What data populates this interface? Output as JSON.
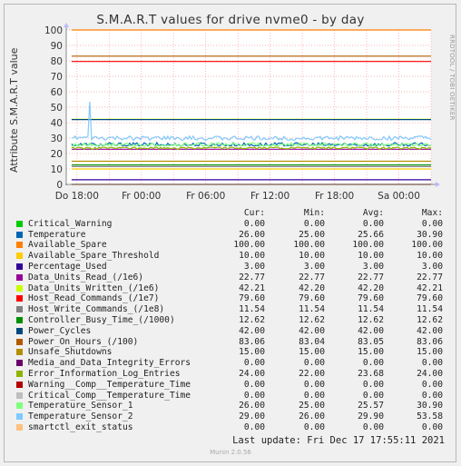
{
  "chart_data": {
    "type": "line",
    "title": "S.M.A.R.T values for drive nvme0 - by day",
    "ylabel": "Attribute S.M.A.R.T value",
    "ylim": [
      0,
      100
    ],
    "yticks": [
      0,
      10,
      20,
      30,
      40,
      50,
      60,
      70,
      80,
      90,
      100
    ],
    "xlim": [
      -1,
      33
    ],
    "xticks": [
      {
        "h": 0,
        "label": "Do 18:00"
      },
      {
        "h": 6,
        "label": "Fr 00:00"
      },
      {
        "h": 12,
        "label": "Fr 06:00"
      },
      {
        "h": 18,
        "label": "Fr 12:00"
      },
      {
        "h": 24,
        "label": "Fr 18:00"
      },
      {
        "h": 30,
        "label": "Sa 00:00"
      }
    ],
    "grid": true,
    "series": [
      {
        "name": "Critical_Warning",
        "color": "#00cc00",
        "cur": "0.00",
        "min": "0.00",
        "avg": "0.00",
        "max": "0.00",
        "y": 0
      },
      {
        "name": "Temperature",
        "color": "#0066b3",
        "cur": "26.00",
        "min": "25.00",
        "avg": "25.66",
        "max": "30.90",
        "y": 25.7
      },
      {
        "name": "Available_Spare",
        "color": "#ff8000",
        "cur": "100.00",
        "min": "100.00",
        "avg": "100.00",
        "max": "100.00",
        "y": 100
      },
      {
        "name": "Available_Spare_Threshold",
        "color": "#ffcc00",
        "cur": "10.00",
        "min": "10.00",
        "avg": "10.00",
        "max": "10.00",
        "y": 10
      },
      {
        "name": "Percentage_Used",
        "color": "#330099",
        "cur": "3.00",
        "min": "3.00",
        "avg": "3.00",
        "max": "3.00",
        "y": 3
      },
      {
        "name": "Data_Units_Read_(/1e6)",
        "color": "#990099",
        "cur": "22.77",
        "min": "22.77",
        "avg": "22.77",
        "max": "22.77",
        "y": 22.77
      },
      {
        "name": "Data_Units_Written_(/1e6)",
        "color": "#ccff00",
        "cur": "42.21",
        "min": "42.20",
        "avg": "42.20",
        "max": "42.21",
        "y": 42.2
      },
      {
        "name": "Host_Read_Commands_(/1e7)",
        "color": "#ff0000",
        "cur": "79.60",
        "min": "79.60",
        "avg": "79.60",
        "max": "79.60",
        "y": 79.6
      },
      {
        "name": "Host_Write_Commands_(/1e8)",
        "color": "#808080",
        "cur": "11.54",
        "min": "11.54",
        "avg": "11.54",
        "max": "11.54",
        "y": 11.54
      },
      {
        "name": "Controller_Busy_Time_(/1000)",
        "color": "#008f00",
        "cur": "12.62",
        "min": "12.62",
        "avg": "12.62",
        "max": "12.62",
        "y": 12.62
      },
      {
        "name": "Power_Cycles",
        "color": "#00487d",
        "cur": "42.00",
        "min": "42.00",
        "avg": "42.00",
        "max": "42.00",
        "y": 42
      },
      {
        "name": "Power_On_Hours_(/100)",
        "color": "#b35a00",
        "cur": "83.06",
        "min": "83.04",
        "avg": "83.05",
        "max": "83.06",
        "y": 83.05
      },
      {
        "name": "Unsafe_Shutdowns",
        "color": "#b38f00",
        "cur": "15.00",
        "min": "15.00",
        "avg": "15.00",
        "max": "15.00",
        "y": 15
      },
      {
        "name": "Media_and_Data_Integrity_Errors",
        "color": "#6b006b",
        "cur": "0.00",
        "min": "0.00",
        "avg": "0.00",
        "max": "0.00",
        "y": 0
      },
      {
        "name": "Error_Information_Log_Entries",
        "color": "#8fb300",
        "cur": "24.00",
        "min": "22.00",
        "avg": "23.68",
        "max": "24.00",
        "y": 24
      },
      {
        "name": "Warning__Comp__Temperature_Time",
        "color": "#b30000",
        "cur": "0.00",
        "min": "0.00",
        "avg": "0.00",
        "max": "0.00",
        "y": 0
      },
      {
        "name": "Critical_Comp__Temperature_Time",
        "color": "#bebebe",
        "cur": "0.00",
        "min": "0.00",
        "avg": "0.00",
        "max": "0.00",
        "y": 0
      },
      {
        "name": "Temperature_Sensor_1",
        "color": "#80ff80",
        "cur": "26.00",
        "min": "25.00",
        "avg": "25.57",
        "max": "30.90",
        "y": 25.6
      },
      {
        "name": "Temperature_Sensor_2",
        "color": "#80c9ff",
        "cur": "29.00",
        "min": "26.00",
        "avg": "29.90",
        "max": "53.58",
        "y": 29.9
      },
      {
        "name": "smartctl_exit_status",
        "color": "#ffc080",
        "cur": "0.00",
        "min": "0.00",
        "avg": "0.00",
        "max": "0.00",
        "y": 0
      }
    ]
  },
  "legend": {
    "cur": "Cur:",
    "min": "Min:",
    "avg": "Avg:",
    "max": "Max:"
  },
  "last_update": "Last update: Fri Dec 17 17:55:11 2021",
  "side_note": "RRDTOOL / TOBI OETIKER",
  "version": "Munin 2.0.56"
}
